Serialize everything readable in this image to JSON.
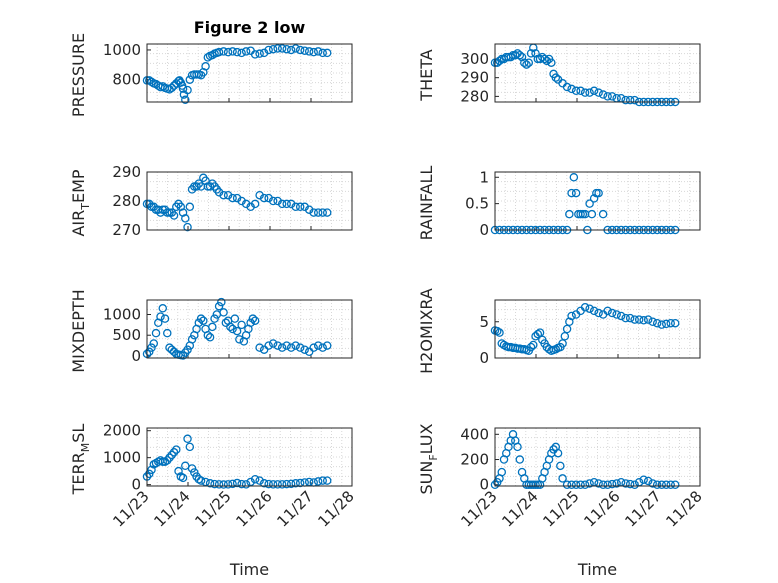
{
  "chart_data": [
    {
      "type": "scatter",
      "title": "Figure 2 low",
      "ylabel": "PRESSURE",
      "ylim": [
        650,
        1040
      ],
      "yticks": [
        800,
        1000
      ],
      "xlim": [
        0,
        4.55
      ],
      "xticks": [],
      "xlabel": "",
      "color": "#0072BD",
      "x": [
        0.0,
        0.05,
        0.1,
        0.15,
        0.2,
        0.25,
        0.3,
        0.35,
        0.4,
        0.45,
        0.5,
        0.55,
        0.6,
        0.65,
        0.7,
        0.72,
        0.75,
        0.78,
        0.8,
        0.82,
        0.85,
        0.9,
        0.95,
        1.0,
        1.05,
        1.1,
        1.15,
        1.2,
        1.25,
        1.3,
        1.35,
        1.4,
        1.45,
        1.5,
        1.55,
        1.6,
        1.7,
        1.8,
        1.9,
        2.0,
        2.1,
        2.2,
        2.3,
        2.4,
        2.5,
        2.6,
        2.7,
        2.8,
        2.9,
        3.0,
        3.1,
        3.2,
        3.3,
        3.4,
        3.5,
        3.6,
        3.7,
        3.8,
        3.9,
        4.0
      ],
      "y": [
        795,
        795,
        785,
        775,
        770,
        760,
        750,
        755,
        745,
        740,
        735,
        745,
        760,
        775,
        790,
        795,
        780,
        760,
        740,
        700,
        665,
        730,
        800,
        830,
        835,
        835,
        835,
        830,
        850,
        890,
        950,
        960,
        965,
        975,
        980,
        985,
        990,
        985,
        990,
        985,
        980,
        990,
        995,
        970,
        975,
        980,
        1000,
        1005,
        1010,
        1010,
        1005,
        1000,
        1010,
        1000,
        995,
        990,
        985,
        990,
        980,
        980
      ]
    },
    {
      "type": "scatter",
      "title": "",
      "ylabel": "THETA",
      "ylim": [
        277,
        308
      ],
      "yticks": [
        280,
        290,
        300
      ],
      "xlim": [
        0,
        4.55
      ],
      "xticks": [],
      "xlabel": "",
      "color": "#0072BD",
      "x": [
        0.0,
        0.05,
        0.1,
        0.15,
        0.2,
        0.25,
        0.3,
        0.35,
        0.4,
        0.45,
        0.5,
        0.55,
        0.6,
        0.65,
        0.7,
        0.75,
        0.8,
        0.85,
        0.9,
        0.95,
        1.0,
        1.05,
        1.1,
        1.15,
        1.2,
        1.25,
        1.3,
        1.35,
        1.4,
        1.5,
        1.6,
        1.7,
        1.8,
        1.9,
        2.0,
        2.1,
        2.2,
        2.3,
        2.4,
        2.5,
        2.6,
        2.7,
        2.8,
        2.9,
        3.0,
        3.1,
        3.2,
        3.3,
        3.4,
        3.5,
        3.6,
        3.7,
        3.8,
        3.9,
        4.0
      ],
      "y": [
        298,
        298,
        299,
        300,
        300,
        301,
        301,
        301,
        302,
        302,
        303,
        302,
        301,
        298,
        297,
        298,
        303,
        306,
        303,
        300,
        300,
        301,
        300,
        299,
        300,
        298,
        292,
        290,
        289,
        287,
        285,
        284,
        283,
        283,
        282,
        282,
        283,
        282,
        281,
        280,
        280,
        279,
        279,
        278,
        278,
        278,
        277,
        277,
        277,
        277,
        277,
        277,
        277,
        277,
        277
      ]
    },
    {
      "type": "scatter",
      "title": "",
      "ylabel": "AIR_TEMP",
      "ylim": [
        270,
        290
      ],
      "yticks": [
        270,
        280,
        290
      ],
      "xlim": [
        0,
        4.55
      ],
      "xticks": [],
      "xlabel": "",
      "color": "#0072BD",
      "x": [
        0.0,
        0.05,
        0.1,
        0.15,
        0.2,
        0.25,
        0.3,
        0.35,
        0.4,
        0.45,
        0.5,
        0.55,
        0.6,
        0.65,
        0.7,
        0.75,
        0.8,
        0.85,
        0.9,
        0.95,
        1.0,
        1.05,
        1.1,
        1.15,
        1.2,
        1.25,
        1.3,
        1.35,
        1.4,
        1.45,
        1.5,
        1.55,
        1.6,
        1.7,
        1.8,
        1.9,
        2.0,
        2.1,
        2.2,
        2.3,
        2.4,
        2.5,
        2.6,
        2.7,
        2.8,
        2.9,
        3.0,
        3.1,
        3.2,
        3.3,
        3.4,
        3.5,
        3.6,
        3.7,
        3.8,
        3.9,
        4.0
      ],
      "y": [
        279,
        279,
        278,
        278,
        277,
        277,
        276,
        277,
        277,
        276,
        276,
        276,
        275,
        278,
        279,
        278,
        276,
        274,
        271,
        278,
        284,
        285,
        285,
        286,
        285,
        288,
        287,
        285,
        285,
        286,
        285,
        284,
        283,
        282,
        282,
        281,
        281,
        280,
        279,
        278,
        279,
        282,
        281,
        281,
        280,
        280,
        279,
        279,
        279,
        278,
        278,
        278,
        277,
        276,
        276,
        276,
        276
      ]
    },
    {
      "type": "scatter",
      "title": "",
      "ylabel": "RAINFALL",
      "ylim": [
        0,
        1.1
      ],
      "yticks": [
        0,
        0.5,
        1
      ],
      "xlim": [
        0,
        4.55
      ],
      "xticks": [],
      "xlabel": "",
      "color": "#0072BD",
      "x": [
        0.0,
        0.1,
        0.2,
        0.3,
        0.4,
        0.5,
        0.6,
        0.7,
        0.8,
        0.9,
        1.0,
        1.1,
        1.2,
        1.3,
        1.4,
        1.5,
        1.6,
        1.65,
        1.7,
        1.75,
        1.8,
        1.85,
        1.9,
        1.95,
        2.0,
        2.05,
        2.1,
        2.15,
        2.2,
        2.25,
        2.3,
        2.4,
        2.5,
        2.6,
        2.7,
        2.8,
        2.9,
        3.0,
        3.1,
        3.2,
        3.3,
        3.4,
        3.5,
        3.6,
        3.7,
        3.8,
        3.9,
        4.0
      ],
      "y": [
        0,
        0,
        0,
        0,
        0,
        0,
        0,
        0,
        0,
        0,
        0,
        0,
        0,
        0,
        0,
        0,
        0,
        0.3,
        0.7,
        1.0,
        0.7,
        0.3,
        0.3,
        0.3,
        0.3,
        0.0,
        0.5,
        0.3,
        0.6,
        0.7,
        0.7,
        0.3,
        0,
        0,
        0,
        0,
        0,
        0,
        0,
        0,
        0,
        0,
        0,
        0,
        0,
        0,
        0,
        0
      ]
    },
    {
      "type": "scatter",
      "title": "",
      "ylabel": "MIXDEPTH",
      "ylim": [
        -50,
        1350
      ],
      "yticks": [
        0,
        500,
        1000
      ],
      "xlim": [
        0,
        4.55
      ],
      "xticks": [],
      "xlabel": "",
      "color": "#0072BD",
      "x": [
        0.0,
        0.05,
        0.1,
        0.15,
        0.2,
        0.25,
        0.3,
        0.35,
        0.4,
        0.45,
        0.5,
        0.55,
        0.6,
        0.65,
        0.7,
        0.75,
        0.8,
        0.85,
        0.9,
        0.95,
        1.0,
        1.05,
        1.1,
        1.15,
        1.2,
        1.25,
        1.3,
        1.35,
        1.4,
        1.45,
        1.5,
        1.55,
        1.6,
        1.65,
        1.7,
        1.75,
        1.8,
        1.85,
        1.9,
        1.95,
        2.0,
        2.05,
        2.1,
        2.15,
        2.2,
        2.25,
        2.3,
        2.35,
        2.4,
        2.5,
        2.6,
        2.7,
        2.8,
        2.9,
        3.0,
        3.1,
        3.2,
        3.3,
        3.4,
        3.5,
        3.6,
        3.7,
        3.8,
        3.9,
        4.0
      ],
      "y": [
        50,
        100,
        200,
        300,
        550,
        800,
        950,
        1150,
        900,
        550,
        200,
        150,
        100,
        50,
        30,
        20,
        10,
        80,
        150,
        250,
        400,
        500,
        650,
        800,
        900,
        850,
        650,
        500,
        450,
        700,
        900,
        1000,
        1200,
        1300,
        1050,
        800,
        850,
        700,
        650,
        900,
        600,
        400,
        750,
        350,
        500,
        650,
        800,
        900,
        850,
        200,
        150,
        250,
        300,
        250,
        200,
        250,
        200,
        250,
        200,
        150,
        100,
        200,
        250,
        200,
        250
      ]
    },
    {
      "type": "scatter",
      "title": "",
      "ylabel": "H2OMIXRA",
      "ylim": [
        0,
        8
      ],
      "yticks": [
        0,
        5
      ],
      "xlim": [
        0,
        4.55
      ],
      "xticks": [],
      "xlabel": "",
      "color": "#0072BD",
      "x": [
        0.0,
        0.05,
        0.1,
        0.15,
        0.2,
        0.25,
        0.3,
        0.35,
        0.4,
        0.45,
        0.5,
        0.55,
        0.6,
        0.65,
        0.7,
        0.75,
        0.8,
        0.85,
        0.9,
        0.95,
        1.0,
        1.05,
        1.1,
        1.15,
        1.2,
        1.25,
        1.3,
        1.35,
        1.4,
        1.45,
        1.5,
        1.55,
        1.6,
        1.65,
        1.7,
        1.8,
        1.9,
        2.0,
        2.1,
        2.2,
        2.3,
        2.4,
        2.5,
        2.6,
        2.7,
        2.8,
        2.9,
        3.0,
        3.1,
        3.2,
        3.3,
        3.4,
        3.5,
        3.6,
        3.7,
        3.8,
        3.9,
        4.0
      ],
      "y": [
        3.8,
        3.7,
        3.5,
        2.0,
        1.8,
        1.6,
        1.5,
        1.5,
        1.4,
        1.4,
        1.3,
        1.3,
        1.2,
        1.2,
        1.1,
        1.0,
        1.5,
        1.8,
        3.0,
        3.3,
        3.5,
        2.5,
        2.0,
        1.5,
        1.2,
        1.0,
        1.1,
        1.2,
        1.4,
        1.5,
        2.0,
        3.0,
        4.0,
        5.0,
        5.8,
        6.0,
        6.5,
        7.0,
        6.8,
        6.5,
        6.2,
        6.0,
        6.5,
        6.2,
        6.0,
        5.8,
        5.5,
        5.5,
        5.3,
        5.3,
        5.2,
        5.3,
        5.0,
        4.8,
        4.6,
        4.7,
        4.8,
        4.8
      ]
    },
    {
      "type": "scatter",
      "title": "",
      "ylabel": "TERR_MSL",
      "ylim": [
        -50,
        2100
      ],
      "yticks": [
        0,
        1000,
        2000
      ],
      "xlim": [
        0,
        4.55
      ],
      "xticks": [
        "11/23",
        "11/24",
        "11/25",
        "11/26",
        "11/27",
        "11/28"
      ],
      "xticks_at": [
        0,
        0.91,
        1.82,
        2.73,
        3.64,
        4.55
      ],
      "xlabel": "Time",
      "color": "#0072BD",
      "x": [
        0.0,
        0.05,
        0.1,
        0.15,
        0.2,
        0.25,
        0.3,
        0.35,
        0.4,
        0.45,
        0.5,
        0.55,
        0.6,
        0.65,
        0.7,
        0.75,
        0.8,
        0.85,
        0.9,
        0.95,
        1.0,
        1.05,
        1.1,
        1.15,
        1.2,
        1.3,
        1.4,
        1.5,
        1.6,
        1.7,
        1.8,
        1.9,
        2.0,
        2.1,
        2.2,
        2.3,
        2.4,
        2.5,
        2.6,
        2.7,
        2.8,
        2.9,
        3.0,
        3.1,
        3.2,
        3.3,
        3.4,
        3.5,
        3.6,
        3.7,
        3.8,
        3.9,
        4.0
      ],
      "y": [
        300,
        400,
        550,
        750,
        800,
        850,
        900,
        850,
        850,
        900,
        1000,
        1100,
        1200,
        1300,
        500,
        300,
        250,
        700,
        1700,
        1400,
        600,
        450,
        300,
        200,
        150,
        100,
        50,
        20,
        10,
        5,
        10,
        30,
        60,
        20,
        10,
        100,
        200,
        150,
        50,
        20,
        10,
        10,
        10,
        20,
        30,
        50,
        60,
        80,
        100,
        80,
        120,
        150,
        150
      ]
    },
    {
      "type": "scatter",
      "title": "",
      "ylabel": "SUN_FLUX",
      "ylim": [
        -10,
        450
      ],
      "yticks": [
        0,
        200,
        400
      ],
      "xlim": [
        0,
        4.55
      ],
      "xticks": [
        "11/23",
        "11/24",
        "11/25",
        "11/26",
        "11/27",
        "11/28"
      ],
      "xticks_at": [
        0,
        0.91,
        1.82,
        2.73,
        3.64,
        4.55
      ],
      "xlabel": "Time",
      "color": "#0072BD",
      "x": [
        0.0,
        0.05,
        0.1,
        0.15,
        0.2,
        0.25,
        0.3,
        0.35,
        0.4,
        0.45,
        0.5,
        0.55,
        0.6,
        0.65,
        0.7,
        0.75,
        0.8,
        0.85,
        0.9,
        0.95,
        1.0,
        1.05,
        1.1,
        1.15,
        1.2,
        1.25,
        1.3,
        1.35,
        1.4,
        1.45,
        1.5,
        1.6,
        1.7,
        1.8,
        1.9,
        2.0,
        2.1,
        2.2,
        2.3,
        2.4,
        2.5,
        2.6,
        2.7,
        2.8,
        2.9,
        3.0,
        3.1,
        3.2,
        3.3,
        3.4,
        3.5,
        3.6,
        3.7,
        3.8,
        3.9,
        4.0
      ],
      "y": [
        0,
        20,
        50,
        100,
        200,
        250,
        300,
        350,
        400,
        350,
        300,
        200,
        100,
        50,
        0,
        0,
        0,
        0,
        0,
        0,
        0,
        50,
        100,
        150,
        200,
        250,
        280,
        300,
        250,
        150,
        50,
        0,
        0,
        0,
        0,
        0,
        10,
        20,
        10,
        0,
        0,
        5,
        10,
        20,
        10,
        5,
        0,
        20,
        40,
        30,
        10,
        0,
        0,
        0,
        0,
        0
      ]
    }
  ]
}
